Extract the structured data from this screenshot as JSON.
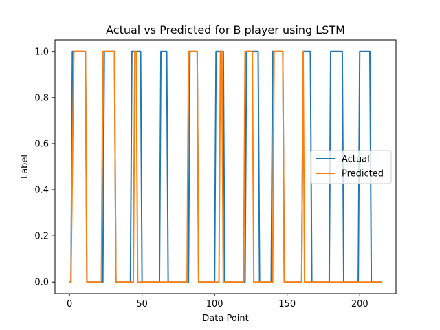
{
  "chart_data": {
    "type": "line",
    "title": "Actual vs Predicted for B player using LSTM",
    "xlabel": "Data Point",
    "ylabel": "Label",
    "xlim": [
      -10,
      225
    ],
    "ylim": [
      -0.05,
      1.05
    ],
    "x_ticks": [
      0,
      50,
      100,
      150,
      200
    ],
    "x_tick_labels": [
      "0",
      "50",
      "100",
      "150",
      "200"
    ],
    "y_ticks": [
      0.0,
      0.2,
      0.4,
      0.6,
      0.8,
      1.0
    ],
    "y_tick_labels": [
      "0.0",
      "0.2",
      "0.4",
      "0.6",
      "0.8",
      "1.0"
    ],
    "grid": false,
    "legend_position": "center-right",
    "series": [
      {
        "name": "Actual",
        "color": "#1f77b4",
        "segments": [
          [
            0,
            0
          ],
          [
            1,
            0
          ],
          [
            2,
            1
          ],
          [
            11,
            1
          ],
          [
            12,
            0
          ],
          [
            23,
            0
          ],
          [
            24,
            1
          ],
          [
            31,
            1
          ],
          [
            32,
            0
          ],
          [
            42,
            0
          ],
          [
            43,
            1
          ],
          [
            49,
            1
          ],
          [
            50,
            0
          ],
          [
            62,
            0
          ],
          [
            63,
            1
          ],
          [
            67,
            1
          ],
          [
            68,
            0
          ],
          [
            82,
            0
          ],
          [
            83,
            1
          ],
          [
            88,
            1
          ],
          [
            89,
            0
          ],
          [
            100,
            0
          ],
          [
            101,
            1
          ],
          [
            106,
            1
          ],
          [
            107,
            0
          ],
          [
            121,
            0
          ],
          [
            122,
            1
          ],
          [
            130,
            1
          ],
          [
            131,
            0
          ],
          [
            139,
            0
          ],
          [
            140,
            1
          ],
          [
            147,
            1
          ],
          [
            148,
            0
          ],
          [
            160,
            0
          ],
          [
            161,
            1
          ],
          [
            166,
            1
          ],
          [
            167,
            0
          ],
          [
            179,
            0
          ],
          [
            180,
            1
          ],
          [
            188,
            1
          ],
          [
            189,
            0
          ],
          [
            199,
            0
          ],
          [
            200,
            1
          ],
          [
            207,
            1
          ],
          [
            208,
            0
          ],
          [
            215,
            0
          ]
        ]
      },
      {
        "name": "Predicted",
        "color": "#ff7f0e",
        "segments": [
          [
            0,
            0
          ],
          [
            1,
            0
          ],
          [
            3,
            1
          ],
          [
            11,
            1
          ],
          [
            12,
            0
          ],
          [
            22,
            0
          ],
          [
            23,
            1
          ],
          [
            31,
            1
          ],
          [
            32,
            0
          ],
          [
            44,
            0
          ],
          [
            45,
            1
          ],
          [
            46,
            1
          ],
          [
            47,
            0
          ],
          [
            81,
            0
          ],
          [
            82,
            1
          ],
          [
            88,
            1
          ],
          [
            89,
            0
          ],
          [
            103,
            0
          ],
          [
            104,
            1
          ],
          [
            105,
            1
          ],
          [
            106,
            0
          ],
          [
            120,
            0
          ],
          [
            121,
            1
          ],
          [
            126,
            1
          ],
          [
            127,
            0
          ],
          [
            140,
            0
          ],
          [
            141,
            1
          ],
          [
            147,
            1
          ],
          [
            148,
            0
          ],
          [
            160,
            0
          ],
          [
            161,
            1
          ],
          [
            162,
            0
          ],
          [
            215,
            0
          ]
        ]
      }
    ]
  }
}
